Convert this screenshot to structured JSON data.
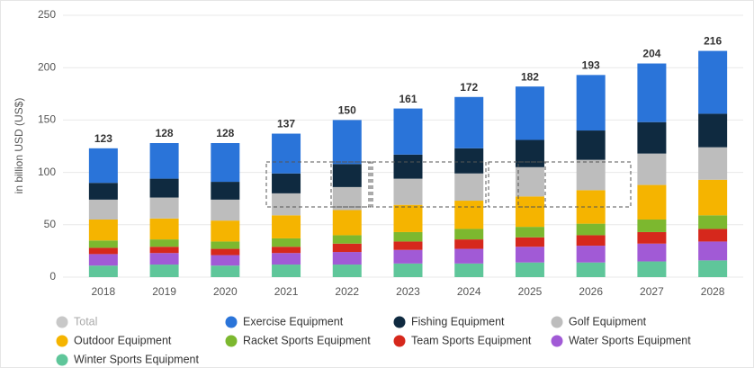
{
  "chart_data": {
    "type": "stacked_bar",
    "y_label": "in billion USD (US$)",
    "categories": [
      "2018",
      "2019",
      "2020",
      "2021",
      "2022",
      "2023",
      "2024",
      "2025",
      "2026",
      "2027",
      "2028"
    ],
    "series": [
      {
        "name": "Total",
        "color": "#c8c8c8",
        "values": [
          123,
          128,
          128,
          137,
          150,
          161,
          172,
          182,
          193,
          204,
          216
        ]
      },
      {
        "name": "Exercise Equipment",
        "color": "#2a74d9",
        "values": [
          33,
          34,
          37,
          38,
          42,
          44,
          49,
          51,
          53,
          56,
          60
        ]
      },
      {
        "name": "Fishing Equipment",
        "color": "#0f2a40",
        "values": [
          16,
          18,
          17,
          19,
          22,
          23,
          24,
          26,
          28,
          30,
          32
        ]
      },
      {
        "name": "Golf Equipment",
        "color": "#bdbdbd",
        "values": [
          19,
          20,
          20,
          21,
          22,
          25,
          26,
          28,
          29,
          30,
          31
        ]
      },
      {
        "name": "Outdoor Equipment",
        "color": "#f5b400",
        "values": [
          20,
          20,
          20,
          22,
          24,
          26,
          27,
          29,
          32,
          33,
          34
        ]
      },
      {
        "name": "Racket Sports Equipment",
        "color": "#7cb82f",
        "values": [
          7,
          7,
          7,
          8,
          8,
          9,
          10,
          10,
          11,
          12,
          13
        ]
      },
      {
        "name": "Team Sports Equipment",
        "color": "#d6281c",
        "values": [
          6,
          6,
          6,
          6,
          8,
          8,
          9,
          9,
          10,
          11,
          12
        ]
      },
      {
        "name": "Water Sports Equipment",
        "color": "#a15ad6",
        "values": [
          11,
          11,
          10,
          11,
          12,
          13,
          14,
          15,
          16,
          17,
          18
        ]
      },
      {
        "name": "Winter Sports Equipment",
        "color": "#5fc69a",
        "values": [
          11,
          12,
          11,
          12,
          12,
          13,
          13,
          14,
          14,
          15,
          16
        ]
      }
    ],
    "ylim": [
      0,
      250
    ],
    "yticks": [
      0,
      50,
      100,
      150,
      200,
      250
    ],
    "grid": true
  }
}
